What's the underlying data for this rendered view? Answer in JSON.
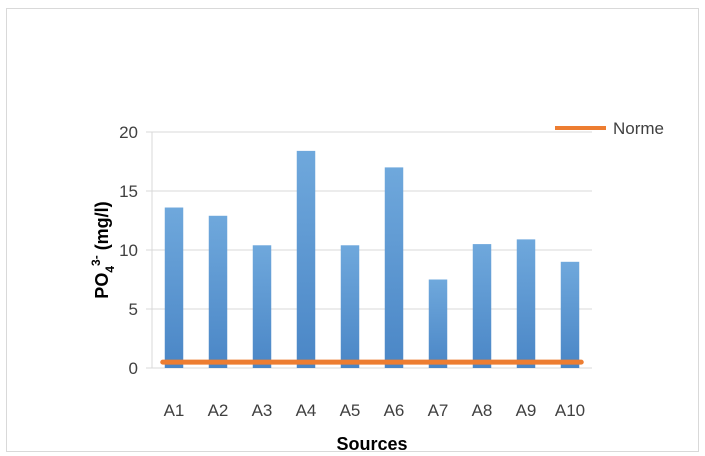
{
  "chart_data": {
    "type": "bar",
    "categories": [
      "A1",
      "A2",
      "A3",
      "A4",
      "A5",
      "A6",
      "A7",
      "A8",
      "A9",
      "A10"
    ],
    "series": [
      {
        "values": [
          13.6,
          12.9,
          10.4,
          18.4,
          10.4,
          17.0,
          7.5,
          10.5,
          10.9,
          9.0
        ],
        "color": "#5b9bd5"
      },
      {
        "name": "Norme",
        "type": "line",
        "values": [
          0.5,
          0.5,
          0.5,
          0.5,
          0.5,
          0.5,
          0.5,
          0.5,
          0.5,
          0.5
        ],
        "color": "#ed7d31"
      }
    ],
    "xlabel": "Sources",
    "ylabel": "PO₄³⁻ (mg/l)",
    "ylabel_parts": {
      "base": "PO",
      "sub": "4",
      "sup": "3-",
      "unit": " (mg/l)"
    },
    "ylim": [
      0,
      20
    ],
    "yticks": [
      0,
      5,
      10,
      15,
      20
    ],
    "grid": true,
    "legend": "top-right"
  }
}
